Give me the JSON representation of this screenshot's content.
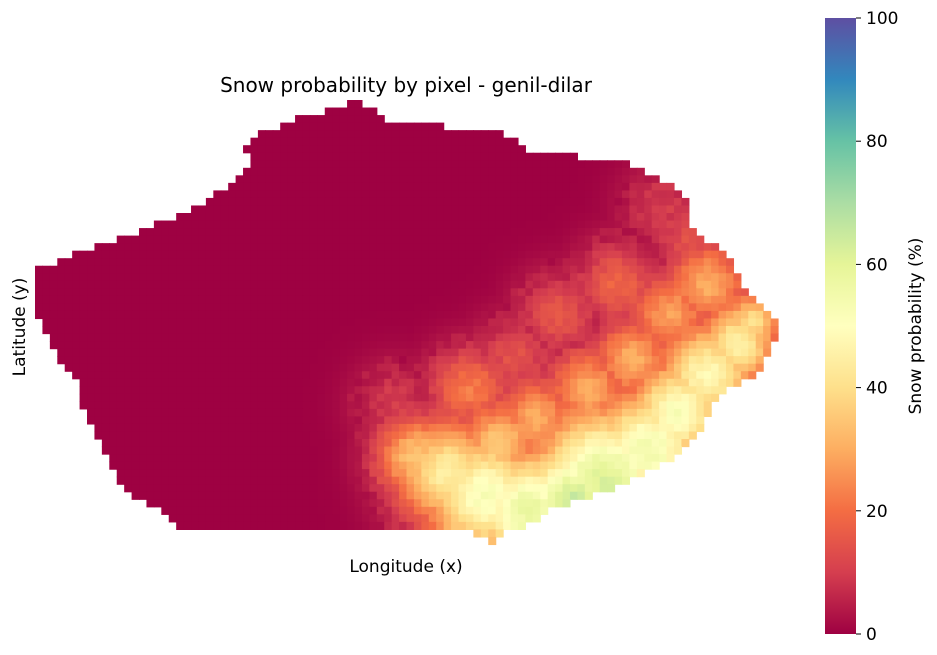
{
  "chart_data": {
    "type": "heatmap",
    "title": "Snow probability by pixel - genil-dilar",
    "xlabel": "Longitude (x)",
    "ylabel": "Latitude (y)",
    "grid": false,
    "colorbar": {
      "label": "Snow probability (%)",
      "range": [
        0,
        100
      ],
      "ticks": [
        "0",
        "20",
        "40",
        "60",
        "80",
        "100"
      ],
      "colormap": "Spectral",
      "stops": [
        {
          "value": 0,
          "color": "#9e0142"
        },
        {
          "value": 10,
          "color": "#d53e4f"
        },
        {
          "value": 20,
          "color": "#f46d43"
        },
        {
          "value": 30,
          "color": "#fdae61"
        },
        {
          "value": 40,
          "color": "#fee08b"
        },
        {
          "value": 50,
          "color": "#ffffbf"
        },
        {
          "value": 60,
          "color": "#e6f598"
        },
        {
          "value": 70,
          "color": "#abdda4"
        },
        {
          "value": 80,
          "color": "#66c2a5"
        },
        {
          "value": 90,
          "color": "#3288bd"
        },
        {
          "value": 100,
          "color": "#5e4fa2"
        }
      ]
    },
    "grid_size": {
      "cols": 100,
      "rows": 60
    },
    "region_rows": [
      {
        "row": 0,
        "col_start": 42,
        "col_end": 44
      },
      {
        "row": 2,
        "col_start": 35,
        "col_end": 47
      },
      {
        "row": 4,
        "col_start": 30,
        "col_end": 63
      },
      {
        "row": 6,
        "col_start": 28,
        "col_end": 66
      },
      {
        "row": 8,
        "col_start": 29,
        "col_end": 80
      },
      {
        "row": 10,
        "col_start": 27,
        "col_end": 84
      },
      {
        "row": 12,
        "col_start": 24,
        "col_end": 87
      },
      {
        "row": 14,
        "col_start": 21,
        "col_end": 88
      },
      {
        "row": 16,
        "col_start": 16,
        "col_end": 88
      },
      {
        "row": 18,
        "col_start": 11,
        "col_end": 90
      },
      {
        "row": 20,
        "col_start": 5,
        "col_end": 93
      },
      {
        "row": 22,
        "col_start": 0,
        "col_end": 94
      },
      {
        "row": 24,
        "col_start": 0,
        "col_end": 95
      },
      {
        "row": 26,
        "col_start": 0,
        "col_end": 97
      },
      {
        "row": 28,
        "col_start": 0,
        "col_end": 99
      },
      {
        "row": 30,
        "col_start": 1,
        "col_end": 100
      },
      {
        "row": 32,
        "col_start": 2,
        "col_end": 99
      },
      {
        "row": 34,
        "col_start": 3,
        "col_end": 98
      },
      {
        "row": 36,
        "col_start": 5,
        "col_end": 97
      },
      {
        "row": 38,
        "col_start": 6,
        "col_end": 93
      },
      {
        "row": 40,
        "col_start": 6,
        "col_end": 91
      },
      {
        "row": 42,
        "col_start": 7,
        "col_end": 90
      },
      {
        "row": 44,
        "col_start": 8,
        "col_end": 89
      },
      {
        "row": 46,
        "col_start": 9,
        "col_end": 87
      },
      {
        "row": 48,
        "col_start": 10,
        "col_end": 84
      },
      {
        "row": 50,
        "col_start": 11,
        "col_end": 80
      },
      {
        "row": 52,
        "col_start": 13,
        "col_end": 75
      },
      {
        "row": 54,
        "col_start": 17,
        "col_end": 69
      },
      {
        "row": 56,
        "col_start": 19,
        "col_end": 66
      },
      {
        "row": 57,
        "col_start": 59,
        "col_end": 63
      },
      {
        "row": 58,
        "col_start": 61,
        "col_end": 62
      }
    ],
    "snow_zones": [
      {
        "col": 96,
        "row": 29,
        "value": 40,
        "radius": 3
      },
      {
        "col": 94,
        "row": 32,
        "value": 46,
        "radius": 4
      },
      {
        "col": 90,
        "row": 36,
        "value": 48,
        "radius": 5
      },
      {
        "col": 86,
        "row": 41,
        "value": 52,
        "radius": 5
      },
      {
        "col": 82,
        "row": 46,
        "value": 55,
        "radius": 6
      },
      {
        "col": 76,
        "row": 50,
        "value": 62,
        "radius": 7
      },
      {
        "col": 72,
        "row": 53,
        "value": 65,
        "radius": 6
      },
      {
        "col": 66,
        "row": 54,
        "value": 58,
        "radius": 6
      },
      {
        "col": 60,
        "row": 52,
        "value": 52,
        "radius": 6
      },
      {
        "col": 55,
        "row": 49,
        "value": 45,
        "radius": 5
      },
      {
        "col": 51,
        "row": 47,
        "value": 35,
        "radius": 4
      },
      {
        "col": 62,
        "row": 45,
        "value": 35,
        "radius": 4
      },
      {
        "col": 67,
        "row": 42,
        "value": 30,
        "radius": 4
      },
      {
        "col": 58,
        "row": 38,
        "value": 22,
        "radius": 4
      },
      {
        "col": 74,
        "row": 38,
        "value": 30,
        "radius": 4
      },
      {
        "col": 80,
        "row": 34,
        "value": 30,
        "radius": 4
      },
      {
        "col": 85,
        "row": 28,
        "value": 28,
        "radius": 4
      },
      {
        "col": 90,
        "row": 24,
        "value": 30,
        "radius": 4
      },
      {
        "col": 88,
        "row": 18,
        "value": 14,
        "radius": 4
      },
      {
        "col": 84,
        "row": 14,
        "value": 10,
        "radius": 4
      },
      {
        "col": 78,
        "row": 24,
        "value": 18,
        "radius": 4
      },
      {
        "col": 70,
        "row": 28,
        "value": 15,
        "radius": 4
      },
      {
        "col": 64,
        "row": 34,
        "value": 14,
        "radius": 4
      },
      {
        "col": 48,
        "row": 40,
        "value": 10,
        "radius": 4
      }
    ]
  }
}
